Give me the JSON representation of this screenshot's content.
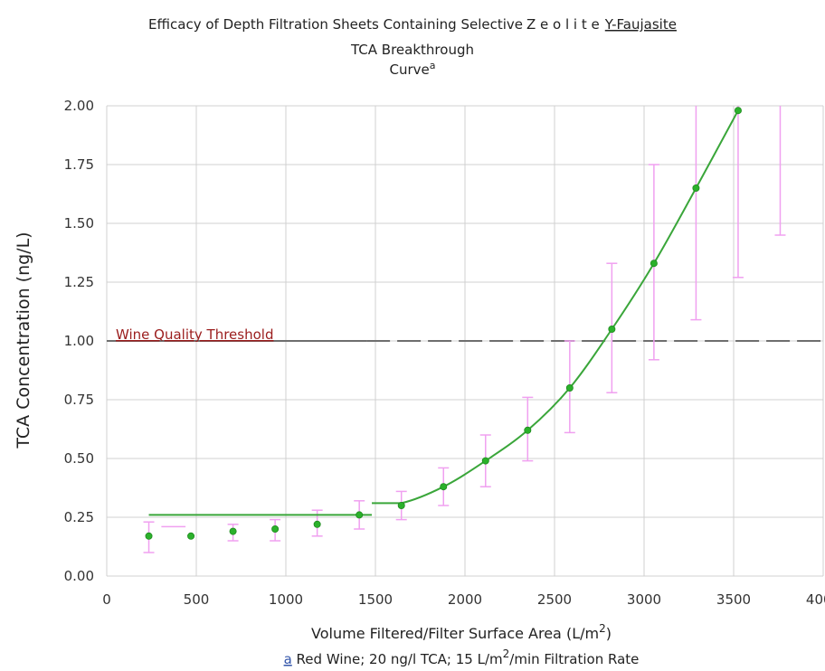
{
  "chart_data": {
    "type": "scatter",
    "title_part1": "Efficacy of Depth Filtration Sheets Containing Selective",
    "title_part2": "Z e o l i t e",
    "title_part3": "Y-Faujasite",
    "subtitle_line1": "TCA Breakthrough",
    "subtitle_line2": "Curve",
    "subtitle_sup": "a",
    "xlabel": "Volume Filtered/Filter Surface Area (L/m",
    "xlabel_sup": "2",
    "xlabel_end": ")",
    "ylabel": "TCA Concentration (ng/L)",
    "footnote_mark": "a",
    "footnote_part1": " Red Wine; 20 ng/l TCA; 15 L/m",
    "footnote_sup": "2",
    "footnote_part2": "/min Filtration Rate",
    "xlim": [
      0,
      4000
    ],
    "ylim": [
      0,
      2
    ],
    "x_ticks": [
      0,
      500,
      1000,
      1500,
      2000,
      2500,
      3000,
      3500,
      4000
    ],
    "x_tick_labels": [
      "0",
      "500",
      "1000",
      "1500",
      "2000",
      "2500",
      "3000",
      "3500",
      "4000"
    ],
    "y_ticks": [
      0,
      0.25,
      0.5,
      0.75,
      1.0,
      1.25,
      1.5,
      1.75,
      2.0
    ],
    "y_tick_labels": [
      "0.00",
      "0.25",
      "0.50",
      "0.75",
      "1.00",
      "1.25",
      "1.50",
      "1.75",
      "2.00"
    ],
    "grid": true,
    "colors": {
      "points": "#2bb12b",
      "fit": "#3aa63a",
      "error_bars": "#f0a0f0",
      "threshold": "#6e6e6e",
      "threshold_label": "#9b1d1d",
      "grid": "#d0d0d0"
    },
    "threshold": {
      "y": 1.0,
      "label": "Wine Quality Threshold"
    },
    "points": [
      {
        "x": 235,
        "y": 0.17,
        "err_low": 0.1,
        "err_high": 0.23
      },
      {
        "x": 470,
        "y": 0.17,
        "err_low": null,
        "err_high": null
      },
      {
        "x": 705,
        "y": 0.19,
        "err_low": 0.15,
        "err_high": 0.22
      },
      {
        "x": 940,
        "y": 0.2,
        "err_low": 0.15,
        "err_high": 0.24
      },
      {
        "x": 1175,
        "y": 0.22,
        "err_low": 0.17,
        "err_high": 0.28
      },
      {
        "x": 1410,
        "y": 0.26,
        "err_low": 0.2,
        "err_high": 0.32
      },
      {
        "x": 1645,
        "y": 0.3,
        "err_low": 0.24,
        "err_high": 0.36
      },
      {
        "x": 1880,
        "y": 0.38,
        "err_low": 0.3,
        "err_high": 0.46
      },
      {
        "x": 2115,
        "y": 0.49,
        "err_low": 0.38,
        "err_high": 0.6
      },
      {
        "x": 2350,
        "y": 0.62,
        "err_low": 0.49,
        "err_high": 0.76
      },
      {
        "x": 2585,
        "y": 0.8,
        "err_low": 0.61,
        "err_high": 1.0
      },
      {
        "x": 2820,
        "y": 1.05,
        "err_low": 0.78,
        "err_high": 1.33
      },
      {
        "x": 3055,
        "y": 1.33,
        "err_low": 0.92,
        "err_high": 1.75
      },
      {
        "x": 3290,
        "y": 1.65,
        "err_low": 1.09,
        "err_high": 2.0
      },
      {
        "x": 3525,
        "y": 1.98,
        "err_low": 1.27,
        "err_high": 2.0
      },
      {
        "x": 3760,
        "y": null,
        "err_low": 1.45,
        "err_high": 2.0
      }
    ],
    "extra_bar": {
      "x1": 305,
      "x2": 440,
      "y": 0.21
    },
    "fit_flat": {
      "x_start": 235,
      "x_end": 1480,
      "y": 0.26
    },
    "fit_curve": [
      {
        "x": 1480,
        "y": 0.31
      },
      {
        "x": 1645,
        "y": 0.31
      },
      {
        "x": 1880,
        "y": 0.38
      },
      {
        "x": 2115,
        "y": 0.49
      },
      {
        "x": 2350,
        "y": 0.62
      },
      {
        "x": 2585,
        "y": 0.8
      },
      {
        "x": 2820,
        "y": 1.05
      },
      {
        "x": 3055,
        "y": 1.33
      },
      {
        "x": 3290,
        "y": 1.65
      },
      {
        "x": 3525,
        "y": 1.98
      }
    ]
  }
}
